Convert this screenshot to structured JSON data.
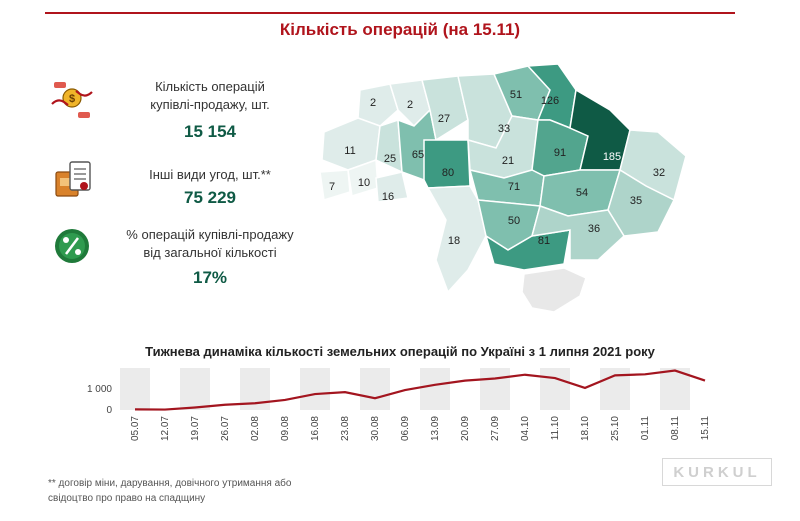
{
  "header": {
    "title": "Кількість операцій (на 15.11)"
  },
  "stats": [
    {
      "label_line1": "Кількість операцій",
      "label_line2": "купівлі-продажу, шт.",
      "value": "15 154"
    },
    {
      "label_line1": "Інші види угод, шт.**",
      "label_line2": "",
      "value": "75 229"
    },
    {
      "label_line1": "% операцій купівлі-продажу",
      "label_line2": "від загальної кількості",
      "value": "17%"
    }
  ],
  "map": {
    "region_values": [
      "2",
      "2",
      "27",
      "51",
      "126",
      "11",
      "25",
      "65",
      "80",
      "33",
      "91",
      "185",
      "32",
      "7",
      "10",
      "16",
      "21",
      "71",
      "54",
      "35",
      "50",
      "18",
      "81",
      "36"
    ],
    "colors": {
      "low": "#dfecea",
      "mid": "#7fbfae",
      "high": "#3d9a82",
      "max": "#0f5a45",
      "crimea": "#e8e8e8"
    }
  },
  "chart_data": {
    "type": "line",
    "title": "Тижнева динаміка кількості земельних операцій по Україні з 1 липня 2021 року",
    "x": [
      "05.07",
      "12.07",
      "19.07",
      "26.07",
      "02.08",
      "09.08",
      "16.08",
      "23.08",
      "30.08",
      "06.09",
      "13.09",
      "20.09",
      "27.09",
      "04.10",
      "11.10",
      "18.10",
      "25.10",
      "01.11",
      "08.11",
      "15.11"
    ],
    "series": [
      {
        "values": [
          30,
          20,
          120,
          250,
          320,
          480,
          760,
          850,
          560,
          950,
          1200,
          1400,
          1500,
          1680,
          1520,
          1050,
          1650,
          1700,
          1880,
          1400
        ],
        "color": "#a3151f"
      }
    ],
    "y_ticks": [
      "0",
      "1 000"
    ],
    "ylim": [
      0,
      2000
    ],
    "grid": false,
    "bands": "alternating grey weekly columns"
  },
  "footnote": {
    "line1": "** договір міни, дарування, довічного утримання або",
    "line2": "свідоцтво про право на спадщину"
  },
  "watermark": {
    "text": "KURKUL"
  }
}
